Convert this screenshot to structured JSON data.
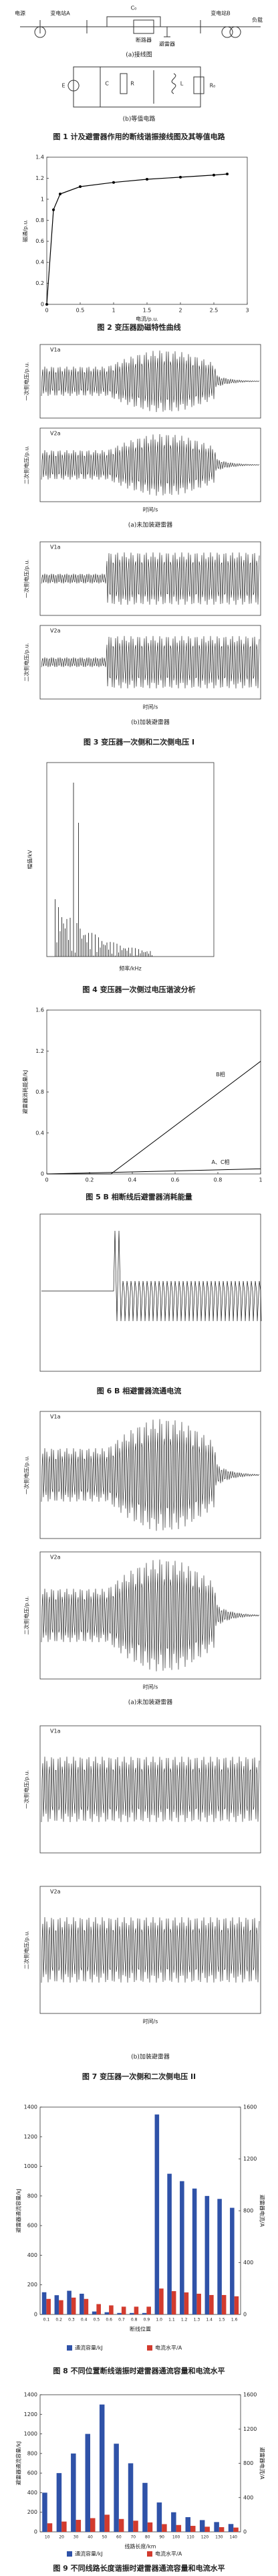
{
  "figures": [
    {
      "subcaptions": [
        "(a)接线图",
        "(b)等值电路"
      ],
      "caption": "图 1 计及避雷器作用的断线谐振接线图及其等值电路",
      "labels": [
        "电源",
        "变电站A",
        "C₀",
        "断路器",
        "避雷器",
        "变电站B",
        "负载",
        "E",
        "C",
        "R",
        "L",
        "R₀"
      ]
    },
    {
      "caption": "图 2 变压器励磁特性曲线",
      "chart": {
        "type": "line",
        "xlabel": "电流/p.u.",
        "ylabel": "磁通/p.u.",
        "x": [
          0,
          0.1,
          0.2,
          0.5,
          1,
          1.5,
          2,
          2.5,
          2.7
        ],
        "values": [
          0,
          0.9,
          1.05,
          1.12,
          1.16,
          1.19,
          1.21,
          1.23,
          1.24
        ],
        "color": "#000000",
        "xlim": [
          0,
          3
        ],
        "xticks": [
          0,
          0.5,
          1,
          1.5,
          2,
          2.5,
          3
        ],
        "ylim": [
          0,
          1.4
        ],
        "yticks": [
          0,
          0.2,
          0.4,
          0.6,
          0.8,
          1,
          1.2,
          1.4
        ]
      }
    },
    {
      "subcaptions": [
        "(a)未加装避雷器",
        "(b)加装避雷器"
      ],
      "caption": "图 3 变压器一次侧和二次侧电压 I",
      "panels": [
        {
          "ylabel": "一次侧电压/p.u.",
          "legend": "V1a"
        },
        {
          "ylabel": "二次侧电压/p.u.",
          "legend": "V2a"
        },
        {
          "ylabel": "一次侧电压/p.u.",
          "legend": "V1a"
        },
        {
          "ylabel": "二次侧电压/p.u.",
          "legend": "V2a"
        }
      ],
      "xlabel": "时间/s"
    },
    {
      "caption": "图 4 变压器一次侧过电压谐波分析",
      "xlabel": "频率/kHz",
      "ylabel": "幅值/kV"
    },
    {
      "caption": "图 5 B 相断线后避雷器消耗能量",
      "chart": {
        "type": "line",
        "ylabel": "避雷器消耗能量/kJ",
        "xlim": [
          0,
          1
        ],
        "xticks": [
          0,
          0.2,
          0.4,
          0.6,
          0.8,
          1
        ],
        "ylim": [
          0,
          1.6
        ],
        "yticks": [
          0,
          0.4,
          0.8,
          1.2,
          1.6
        ],
        "series": [
          {
            "name": "B相",
            "color": "#000000",
            "x": [
              0,
              0.3,
              1
            ],
            "values": [
              0,
              0,
              1.1
            ]
          },
          {
            "name": "A、C相",
            "color": "#000000",
            "x": [
              0,
              1
            ],
            "values": [
              0,
              0.05
            ]
          }
        ]
      }
    },
    {
      "caption": "图 6 B 相避雷器流通电流"
    },
    {
      "subcaptions": [
        "(a)未加装避雷器",
        "(b)加装避雷器"
      ],
      "caption": "图 7 变压器一次侧和二次侧电压 II",
      "panels": [
        {
          "ylabel": "一次侧电压/p.u.",
          "legend": "V1a"
        },
        {
          "ylabel": "二次侧电压/p.u.",
          "legend": "V2a"
        },
        {
          "ylabel": "一次侧电压/p.u.",
          "legend": "V1a"
        },
        {
          "ylabel": "二次侧电压/p.u.",
          "legend": "V2a"
        }
      ],
      "xlabel": "时间/s"
    },
    {
      "caption": "图 8 不同位置断线谐振时避雷器通流容量和电流水平",
      "chart": {
        "type": "bar",
        "xlabel": "断线位置",
        "ylabel": "避雷器通流容量/kJ",
        "y2label": "避雷器电流/A",
        "categories": [
          "0.1",
          "0.2",
          "0.3",
          "0.4",
          "0.5",
          "0.6",
          "0.7",
          "0.8",
          "0.9",
          "1.0",
          "1.1",
          "1.2",
          "1.3",
          "1.4",
          "1.5",
          "1.6"
        ],
        "ylim": [
          0,
          1400
        ],
        "yticks": [
          0,
          200,
          400,
          600,
          800,
          1000,
          1200,
          1400
        ],
        "y2lim": [
          0,
          1600
        ],
        "y2ticks": [
          0,
          400,
          800,
          1200,
          1600
        ],
        "series": [
          {
            "name": "通流容量/kJ",
            "color": "#2f52a8",
            "values": [
              150,
              130,
              160,
              140,
              20,
              15,
              10,
              10,
              10,
              1350,
              950,
              900,
              850,
              800,
              780,
              720
            ]
          },
          {
            "name": "电流水平/A",
            "color": "#d23b2e",
            "axis": "y2",
            "values": [
              120,
              110,
              130,
              120,
              80,
              70,
              60,
              60,
              60,
              200,
              180,
              170,
              160,
              150,
              150,
              140
            ]
          }
        ]
      }
    },
    {
      "caption": "图 9 不同线路长度谐振时避雷器通流容量和电流水平",
      "chart": {
        "type": "bar",
        "xlabel": "线路长度/km",
        "ylabel": "避雷器通流容量/kJ",
        "y2label": "避雷器电流/A",
        "categories": [
          "10",
          "20",
          "30",
          "40",
          "50",
          "60",
          "70",
          "80",
          "90",
          "100",
          "110",
          "120",
          "130",
          "140"
        ],
        "ylim": [
          0,
          1400
        ],
        "yticks": [
          0,
          200,
          400,
          600,
          800,
          1000,
          1200,
          1400
        ],
        "y2lim": [
          0,
          1600
        ],
        "y2ticks": [
          0,
          400,
          800,
          1200,
          1600
        ],
        "series": [
          {
            "name": "通流容量/kJ",
            "color": "#2f52a8",
            "values": [
              400,
              600,
              800,
              1000,
              1300,
              900,
              700,
              500,
              300,
              200,
              150,
              120,
              100,
              80
            ]
          },
          {
            "name": "电流水平/A",
            "color": "#d23b2e",
            "axis": "y2",
            "values": [
              100,
              120,
              140,
              160,
              200,
              150,
              130,
              110,
              90,
              80,
              70,
              60,
              55,
              50
            ]
          }
        ]
      }
    }
  ]
}
